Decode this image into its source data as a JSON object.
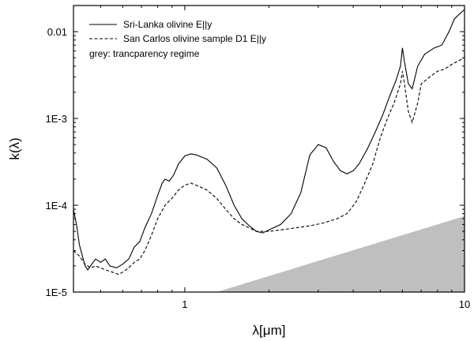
{
  "chart_data": {
    "type": "line",
    "xlabel": "λ[μm]",
    "ylabel": "k(λ)",
    "xscale": "log",
    "yscale": "log",
    "xlim": [
      0.4,
      10
    ],
    "ylim": [
      1e-05,
      0.02
    ],
    "x_ticks": [
      {
        "value": 1,
        "label": "1"
      },
      {
        "value": 10,
        "label": "10"
      }
    ],
    "y_ticks": [
      {
        "value": 1e-05,
        "label": "1E-5"
      },
      {
        "value": 0.0001,
        "label": "1E-4"
      },
      {
        "value": 0.001,
        "label": "1E-3"
      },
      {
        "value": 0.01,
        "label": "0.01"
      }
    ],
    "legend_position": "top-left",
    "annotation": "grey: trancparency regime",
    "series": [
      {
        "name": "Sri-Lanka olivine E||y",
        "style": "solid",
        "color": "#000000",
        "points": [
          [
            0.4,
            9e-05
          ],
          [
            0.41,
            6e-05
          ],
          [
            0.42,
            3.5e-05
          ],
          [
            0.44,
            2e-05
          ],
          [
            0.45,
            1.8e-05
          ],
          [
            0.47,
            2.2e-05
          ],
          [
            0.48,
            2.4e-05
          ],
          [
            0.5,
            2.2e-05
          ],
          [
            0.52,
            2.4e-05
          ],
          [
            0.54,
            2e-05
          ],
          [
            0.57,
            1.9e-05
          ],
          [
            0.6,
            2.1e-05
          ],
          [
            0.63,
            2.4e-05
          ],
          [
            0.66,
            3.3e-05
          ],
          [
            0.69,
            3.8e-05
          ],
          [
            0.72,
            5.5e-05
          ],
          [
            0.76,
            8e-05
          ],
          [
            0.8,
            0.00013
          ],
          [
            0.83,
            0.00018
          ],
          [
            0.85,
            0.0002
          ],
          [
            0.88,
            0.00019
          ],
          [
            0.91,
            0.00022
          ],
          [
            0.95,
            0.0003
          ],
          [
            1.0,
            0.00037
          ],
          [
            1.05,
            0.00039
          ],
          [
            1.1,
            0.00038
          ],
          [
            1.2,
            0.00034
          ],
          [
            1.3,
            0.00027
          ],
          [
            1.4,
            0.00017
          ],
          [
            1.5,
            0.0001
          ],
          [
            1.6,
            7e-05
          ],
          [
            1.7,
            5.8e-05
          ],
          [
            1.8,
            5e-05
          ],
          [
            1.9,
            4.8e-05
          ],
          [
            2.0,
            5.2e-05
          ],
          [
            2.2,
            6e-05
          ],
          [
            2.4,
            8e-05
          ],
          [
            2.6,
            0.00014
          ],
          [
            2.8,
            0.00038
          ],
          [
            3.0,
            0.0005
          ],
          [
            3.2,
            0.00046
          ],
          [
            3.4,
            0.00032
          ],
          [
            3.6,
            0.00025
          ],
          [
            3.8,
            0.00023
          ],
          [
            4.0,
            0.00025
          ],
          [
            4.2,
            0.0003
          ],
          [
            4.5,
            0.00045
          ],
          [
            4.8,
            0.0007
          ],
          [
            5.1,
            0.0011
          ],
          [
            5.4,
            0.0018
          ],
          [
            5.7,
            0.0028
          ],
          [
            5.9,
            0.004
          ],
          [
            6.0,
            0.0065
          ],
          [
            6.1,
            0.0045
          ],
          [
            6.3,
            0.0025
          ],
          [
            6.5,
            0.0022
          ],
          [
            6.8,
            0.004
          ],
          [
            7.2,
            0.0055
          ],
          [
            7.8,
            0.0065
          ],
          [
            8.3,
            0.007
          ],
          [
            8.8,
            0.01
          ],
          [
            9.2,
            0.014
          ],
          [
            9.6,
            0.016
          ],
          [
            10.0,
            0.018
          ]
        ]
      },
      {
        "name": "San Carlos olivine sample D1 E||y",
        "style": "dashed",
        "color": "#000000",
        "points": [
          [
            0.4,
            3e-05
          ],
          [
            0.42,
            2.6e-05
          ],
          [
            0.44,
            2.1e-05
          ],
          [
            0.46,
            1.9e-05
          ],
          [
            0.48,
            2e-05
          ],
          [
            0.5,
            1.9e-05
          ],
          [
            0.52,
            1.8e-05
          ],
          [
            0.55,
            1.7e-05
          ],
          [
            0.58,
            1.6e-05
          ],
          [
            0.6,
            1.7e-05
          ],
          [
            0.63,
            1.9e-05
          ],
          [
            0.66,
            2.2e-05
          ],
          [
            0.69,
            2.4e-05
          ],
          [
            0.72,
            3e-05
          ],
          [
            0.76,
            4.5e-05
          ],
          [
            0.8,
            7e-05
          ],
          [
            0.85,
            0.0001
          ],
          [
            0.9,
            0.00012
          ],
          [
            0.95,
            0.00015
          ],
          [
            1.0,
            0.00017
          ],
          [
            1.05,
            0.00018
          ],
          [
            1.1,
            0.00017
          ],
          [
            1.2,
            0.00015
          ],
          [
            1.3,
            0.00012
          ],
          [
            1.4,
            9e-05
          ],
          [
            1.5,
            7e-05
          ],
          [
            1.6,
            6e-05
          ],
          [
            1.7,
            5.5e-05
          ],
          [
            1.8,
            5e-05
          ],
          [
            2.0,
            5e-05
          ],
          [
            2.2,
            5.2e-05
          ],
          [
            2.5,
            5.5e-05
          ],
          [
            2.8,
            5.8e-05
          ],
          [
            3.1,
            6.2e-05
          ],
          [
            3.5,
            7e-05
          ],
          [
            3.8,
            8e-05
          ],
          [
            4.1,
            0.00011
          ],
          [
            4.4,
            0.00018
          ],
          [
            4.7,
            0.0003
          ],
          [
            5.0,
            0.0006
          ],
          [
            5.3,
            0.001
          ],
          [
            5.6,
            0.0015
          ],
          [
            5.9,
            0.0025
          ],
          [
            6.0,
            0.0035
          ],
          [
            6.1,
            0.0025
          ],
          [
            6.3,
            0.0012
          ],
          [
            6.5,
            0.0009
          ],
          [
            6.8,
            0.0015
          ],
          [
            7.0,
            0.0025
          ],
          [
            7.5,
            0.003
          ],
          [
            8.0,
            0.0035
          ],
          [
            8.5,
            0.0037
          ],
          [
            9.0,
            0.0042
          ],
          [
            9.5,
            0.0046
          ],
          [
            10.0,
            0.005
          ]
        ]
      }
    ],
    "region": {
      "label": "trancparency regime",
      "color": "#bfbfbf",
      "polygon": [
        [
          1.3,
          1e-05
        ],
        [
          10.0,
          7.5e-05
        ],
        [
          10.0,
          1e-05
        ]
      ]
    }
  }
}
